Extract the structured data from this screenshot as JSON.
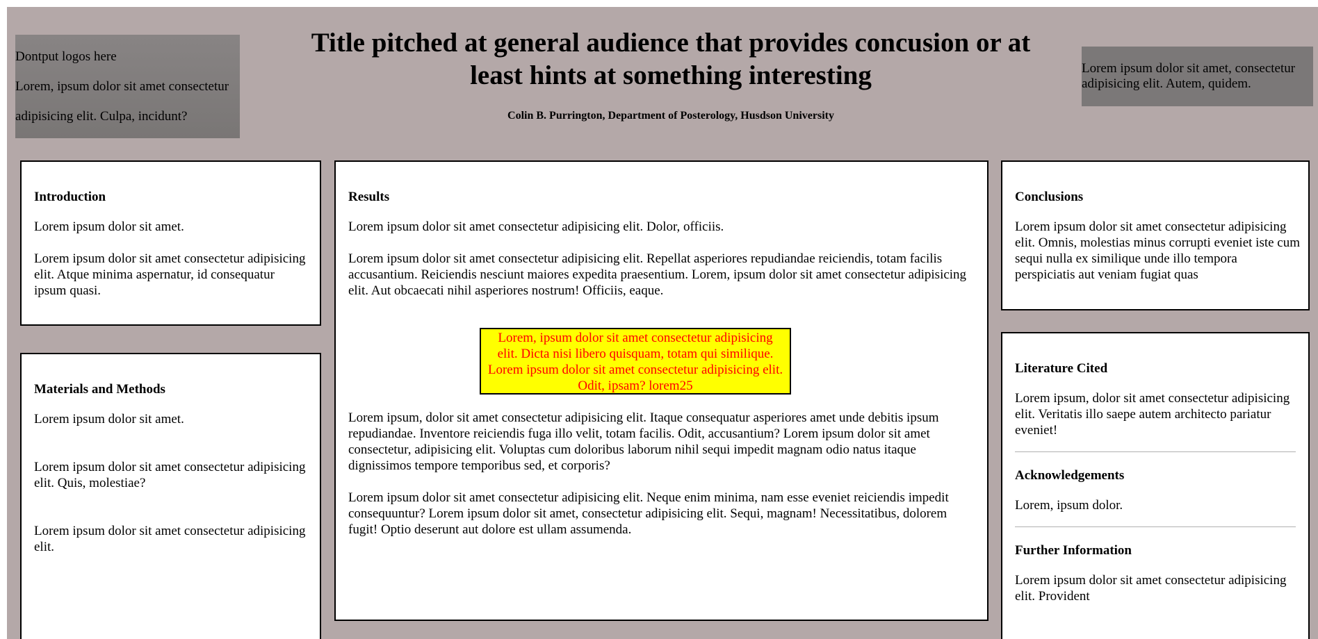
{
  "header": {
    "logo_box": {
      "line1": "Dontput logos here",
      "line2": "Lorem, ipsum dolor sit amet consectetur",
      "line3": "adipisicing elit. Culpa, incidunt?"
    },
    "title": "Title pitched at general audience that provides concusion or at least hints at something interesting",
    "authors": "Colin B. Purrington, Department of Posterology, Husdson University",
    "right_box": "Lorem ipsum dolor sit amet, consectetur adipisicing elit. Autem, quidem."
  },
  "introduction": {
    "heading": "Introduction",
    "p1": "Lorem ipsum dolor sit amet.",
    "p2": "Lorem ipsum dolor sit amet consectetur adipisicing elit. Atque minima aspernatur, id consequatur ipsum quasi."
  },
  "methods": {
    "heading": "Materials and Methods",
    "p1": "Lorem ipsum dolor sit amet.",
    "p2": "Lorem ipsum dolor sit amet consectetur adipisicing elit. Quis, molestiae?",
    "p3": "Lorem ipsum dolor sit amet consectetur adipisicing elit."
  },
  "results": {
    "heading": "Results",
    "p1": "Lorem ipsum dolor sit amet consectetur adipisicing elit. Dolor, officiis.",
    "p2": "Lorem ipsum dolor sit amet consectetur adipisicing elit. Repellat asperiores repudiandae reiciendis, totam facilis accusantium. Reiciendis nesciunt maiores expedita praesentium. Lorem, ipsum dolor sit amet consectetur adipisicing elit. Aut obcaecati nihil asperiores nostrum! Officiis, eaque.",
    "callout": "Lorem, ipsum dolor sit amet consectetur adipisicing elit. Dicta nisi libero quisquam, totam qui similique. Lorem ipsum dolor sit amet consectetur adipisicing elit. Odit, ipsam? lorem25",
    "p3": "Lorem ipsum, dolor sit amet consectetur adipisicing elit. Itaque consequatur asperiores amet unde debitis ipsum repudiandae. Inventore reiciendis fuga illo velit, totam facilis. Odit, accusantium? Lorem ipsum dolor sit amet consectetur, adipisicing elit. Voluptas cum doloribus laborum nihil sequi impedit magnam odio natus itaque dignissimos tempore temporibus sed, et corporis?",
    "p4": "Lorem ipsum dolor sit amet consectetur adipisicing elit. Neque enim minima, nam esse eveniet reiciendis impedit consequuntur? Lorem ipsum dolor sit amet, consectetur adipisicing elit. Sequi, magnam! Necessitatibus, dolorem fugit! Optio deserunt aut dolore est ullam assumenda."
  },
  "conclusions": {
    "heading": "Conclusions",
    "p1": "Lorem ipsum dolor sit amet consectetur adipisicing elit. Omnis, molestias minus corrupti eveniet iste cum sequi nulla ex similique unde illo tempora perspiciatis aut veniam fugiat quas"
  },
  "literature": {
    "heading": "Literature Cited",
    "p1": "Lorem ipsum, dolor sit amet consectetur adipisicing elit. Veritatis illo saepe autem architecto pariatur eveniet!",
    "ack_heading": "Acknowledgements",
    "ack_text": "Lorem, ipsum dolor.",
    "info_heading": "Further Information",
    "info_text": "Lorem ipsum dolor sit amet consectetur adipisicing elit. Provident"
  },
  "colors": {
    "poster_background": "#b4a8a8",
    "callout_background": "#ffff00",
    "callout_text": "#ff0000"
  }
}
